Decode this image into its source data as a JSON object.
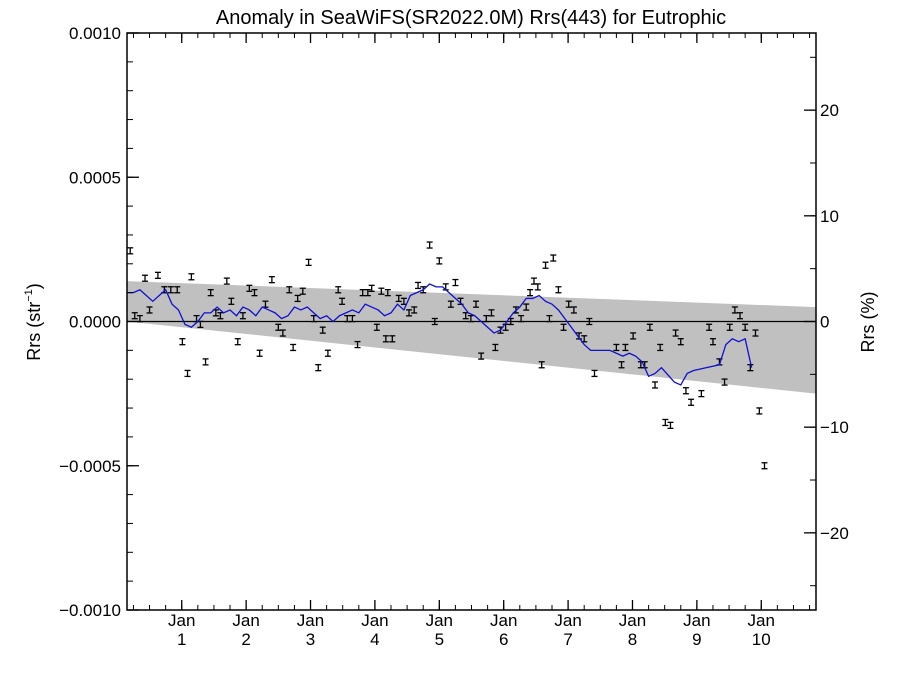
{
  "chart_data": {
    "type": "scatter",
    "title": "Anomaly in SeaWiFS(SR2022.0M) Rrs(443) for Eutrophic",
    "ylabel_left": "Rrs (str",
    "ylabel_left_sup": "−1",
    "ylabel_left_close": ")",
    "ylabel_right": "Rrs (%)",
    "xlim": [
      0,
      10.7
    ],
    "ylim": [
      -0.001,
      0.001
    ],
    "ylim_right": [
      -27.3,
      27.3
    ],
    "left_ticks": [
      {
        "v": 0.001,
        "label": "0.0010"
      },
      {
        "v": 0.0005,
        "label": "0.0005"
      },
      {
        "v": 0.0,
        "label": "0.0000"
      },
      {
        "v": -0.0005,
        "label": "−0.0005"
      },
      {
        "v": -0.001,
        "label": "−0.0010"
      }
    ],
    "right_ticks": [
      {
        "v": 20,
        "label": "20"
      },
      {
        "v": 10,
        "label": "10"
      },
      {
        "v": 0,
        "label": "0"
      },
      {
        "v": -10,
        "label": "−10"
      },
      {
        "v": -20,
        "label": "−20"
      }
    ],
    "x_ticks": [
      {
        "x": 0.85,
        "month": "Jan",
        "year": "1"
      },
      {
        "x": 1.85,
        "month": "Jan",
        "year": "2"
      },
      {
        "x": 2.85,
        "month": "Jan",
        "year": "3"
      },
      {
        "x": 3.85,
        "month": "Jan",
        "year": "4"
      },
      {
        "x": 4.85,
        "month": "Jan",
        "year": "5"
      },
      {
        "x": 5.85,
        "month": "Jan",
        "year": "6"
      },
      {
        "x": 6.85,
        "month": "Jan",
        "year": "7"
      },
      {
        "x": 7.85,
        "month": "Jan",
        "year": "8"
      },
      {
        "x": 8.85,
        "month": "Jan",
        "year": "9"
      },
      {
        "x": 9.85,
        "month": "Jan",
        "year": "10"
      }
    ],
    "envelope": {
      "x": [
        0,
        10.7
      ],
      "upper": [
        0.00014,
        5e-05
      ],
      "lower": [
        0.0,
        -0.00025
      ]
    },
    "points": [
      {
        "x": 0.05,
        "y": 0.000245
      },
      {
        "x": 0.12,
        "y": 2e-05
      },
      {
        "x": 0.2,
        "y": 1e-05
      },
      {
        "x": 0.28,
        "y": 0.00015
      },
      {
        "x": 0.35,
        "y": 4e-05
      },
      {
        "x": 0.48,
        "y": 0.00016
      },
      {
        "x": 0.58,
        "y": 0.00011
      },
      {
        "x": 0.68,
        "y": 0.00011
      },
      {
        "x": 0.78,
        "y": 0.00011
      },
      {
        "x": 0.86,
        "y": -7e-05
      },
      {
        "x": 0.94,
        "y": -0.00018
      },
      {
        "x": 1.0,
        "y": 0.000155
      },
      {
        "x": 1.08,
        "y": 1e-05
      },
      {
        "x": 1.14,
        "y": -1e-05
      },
      {
        "x": 1.22,
        "y": -0.00014
      },
      {
        "x": 1.3,
        "y": 0.0001
      },
      {
        "x": 1.38,
        "y": 3e-05
      },
      {
        "x": 1.45,
        "y": 2e-05
      },
      {
        "x": 1.55,
        "y": 0.00014
      },
      {
        "x": 1.62,
        "y": 7e-05
      },
      {
        "x": 1.72,
        "y": -7e-05
      },
      {
        "x": 1.8,
        "y": 2e-05
      },
      {
        "x": 1.9,
        "y": 0.000115
      },
      {
        "x": 1.98,
        "y": 0.0001
      },
      {
        "x": 2.06,
        "y": -0.00011
      },
      {
        "x": 2.15,
        "y": 6e-05
      },
      {
        "x": 2.25,
        "y": 0.000145
      },
      {
        "x": 2.35,
        "y": -2e-05
      },
      {
        "x": 2.42,
        "y": -4e-05
      },
      {
        "x": 2.52,
        "y": 0.00011
      },
      {
        "x": 2.58,
        "y": -9e-05
      },
      {
        "x": 2.65,
        "y": 8e-05
      },
      {
        "x": 2.73,
        "y": 0.000105
      },
      {
        "x": 2.82,
        "y": 0.000205
      },
      {
        "x": 2.9,
        "y": 1e-05
      },
      {
        "x": 2.97,
        "y": -0.00016
      },
      {
        "x": 3.04,
        "y": -3e-05
      },
      {
        "x": 3.12,
        "y": -0.00011
      },
      {
        "x": 3.28,
        "y": 0.00011
      },
      {
        "x": 3.34,
        "y": 7e-05
      },
      {
        "x": 3.42,
        "y": 1e-05
      },
      {
        "x": 3.5,
        "y": 1e-05
      },
      {
        "x": 3.58,
        "y": -8e-05
      },
      {
        "x": 3.66,
        "y": 0.0001
      },
      {
        "x": 3.74,
        "y": 0.0001
      },
      {
        "x": 3.8,
        "y": 0.000115
      },
      {
        "x": 3.88,
        "y": -2e-05
      },
      {
        "x": 3.95,
        "y": 0.000105
      },
      {
        "x": 4.02,
        "y": -6e-05
      },
      {
        "x": 4.12,
        "y": -6e-05
      },
      {
        "x": 4.05,
        "y": 0.0001
      },
      {
        "x": 4.22,
        "y": 8e-05
      },
      {
        "x": 4.3,
        "y": 7e-05
      },
      {
        "x": 4.38,
        "y": 3e-05
      },
      {
        "x": 4.46,
        "y": 4e-05
      },
      {
        "x": 4.52,
        "y": 0.000125
      },
      {
        "x": 4.6,
        "y": 0.00011
      },
      {
        "x": 4.7,
        "y": 0.000265
      },
      {
        "x": 4.78,
        "y": 0.0
      },
      {
        "x": 4.85,
        "y": 0.00021
      },
      {
        "x": 4.95,
        "y": 0.00012
      },
      {
        "x": 5.03,
        "y": 6e-05
      },
      {
        "x": 5.1,
        "y": 0.000135
      },
      {
        "x": 5.18,
        "y": 7e-05
      },
      {
        "x": 5.26,
        "y": 2e-05
      },
      {
        "x": 5.34,
        "y": 1e-05
      },
      {
        "x": 5.42,
        "y": 6e-05
      },
      {
        "x": 5.5,
        "y": -0.00012
      },
      {
        "x": 5.58,
        "y": 1e-05
      },
      {
        "x": 5.66,
        "y": 3e-05
      },
      {
        "x": 5.72,
        "y": -9e-05
      },
      {
        "x": 5.8,
        "y": -3e-05
      },
      {
        "x": 5.88,
        "y": -2e-05
      },
      {
        "x": 5.96,
        "y": 0.0
      },
      {
        "x": 6.04,
        "y": 4e-05
      },
      {
        "x": 6.12,
        "y": 1e-05
      },
      {
        "x": 6.2,
        "y": 5e-05
      },
      {
        "x": 6.26,
        "y": 0.0001
      },
      {
        "x": 6.32,
        "y": 0.00014
      },
      {
        "x": 6.38,
        "y": 0.00012
      },
      {
        "x": 6.44,
        "y": -0.00015
      },
      {
        "x": 6.5,
        "y": 0.000195
      },
      {
        "x": 6.56,
        "y": 1e-05
      },
      {
        "x": 6.62,
        "y": 0.00022
      },
      {
        "x": 6.7,
        "y": 0.00011
      },
      {
        "x": 6.78,
        "y": -2e-05
      },
      {
        "x": 6.86,
        "y": 6e-05
      },
      {
        "x": 6.94,
        "y": 4e-05
      },
      {
        "x": 7.02,
        "y": -5e-05
      },
      {
        "x": 7.1,
        "y": -6e-05
      },
      {
        "x": 7.18,
        "y": 0.0
      },
      {
        "x": 7.26,
        "y": -0.00018
      },
      {
        "x": 7.6,
        "y": -9e-05
      },
      {
        "x": 7.68,
        "y": -0.00015
      },
      {
        "x": 7.74,
        "y": -9e-05
      },
      {
        "x": 7.86,
        "y": -5e-05
      },
      {
        "x": 7.98,
        "y": -0.00015
      },
      {
        "x": 8.04,
        "y": -0.00015
      },
      {
        "x": 8.12,
        "y": -2e-05
      },
      {
        "x": 8.2,
        "y": -0.00022
      },
      {
        "x": 8.28,
        "y": -9e-05
      },
      {
        "x": 8.36,
        "y": -0.00035
      },
      {
        "x": 8.44,
        "y": -0.00036
      },
      {
        "x": 8.52,
        "y": -4e-05
      },
      {
        "x": 8.6,
        "y": -7e-05
      },
      {
        "x": 8.68,
        "y": -0.00024
      },
      {
        "x": 8.76,
        "y": -0.00028
      },
      {
        "x": 8.92,
        "y": -0.00025
      },
      {
        "x": 9.04,
        "y": -2e-05
      },
      {
        "x": 9.1,
        "y": -7e-05
      },
      {
        "x": 9.2,
        "y": -0.00014
      },
      {
        "x": 9.28,
        "y": -0.00021
      },
      {
        "x": 9.36,
        "y": -2e-05
      },
      {
        "x": 9.44,
        "y": 4e-05
      },
      {
        "x": 9.52,
        "y": 2e-05
      },
      {
        "x": 9.6,
        "y": -2e-05
      },
      {
        "x": 9.68,
        "y": -0.00016
      },
      {
        "x": 9.76,
        "y": -4e-05
      },
      {
        "x": 9.82,
        "y": -0.00031
      },
      {
        "x": 9.9,
        "y": -0.0005
      }
    ],
    "line_series": {
      "x": [
        0,
        0.1,
        0.2,
        0.3,
        0.4,
        0.5,
        0.6,
        0.7,
        0.8,
        0.9,
        1.0,
        1.1,
        1.2,
        1.3,
        1.4,
        1.5,
        1.6,
        1.7,
        1.8,
        1.9,
        2.0,
        2.1,
        2.2,
        2.3,
        2.4,
        2.5,
        2.6,
        2.7,
        2.8,
        2.9,
        3.0,
        3.1,
        3.2,
        3.3,
        3.4,
        3.5,
        3.6,
        3.7,
        3.8,
        3.9,
        4.0,
        4.1,
        4.2,
        4.3,
        4.4,
        4.5,
        4.6,
        4.7,
        4.8,
        4.9,
        5.0,
        5.1,
        5.2,
        5.3,
        5.4,
        5.5,
        5.6,
        5.7,
        5.8,
        5.9,
        6.0,
        6.1,
        6.2,
        6.3,
        6.4,
        6.5,
        6.6,
        6.7,
        6.8,
        6.9,
        7.0,
        7.1,
        7.2,
        7.3,
        7.5,
        7.7,
        7.8,
        7.9,
        8.0,
        8.1,
        8.2,
        8.3,
        8.5,
        8.6,
        8.7,
        8.8,
        9.0,
        9.2,
        9.3,
        9.4,
        9.5,
        9.6,
        9.7
      ],
      "y": [
        0.0001,
        0.0001,
        0.00011,
        9e-05,
        7e-05,
        9e-05,
        0.00011,
        6e-05,
        4e-05,
        -1e-05,
        -2e-05,
        0.0,
        3e-05,
        3e-05,
        5e-05,
        3e-05,
        4e-05,
        2e-05,
        5e-05,
        4e-05,
        2e-05,
        5e-05,
        4e-05,
        3e-05,
        1e-05,
        2e-05,
        5e-05,
        4e-05,
        5e-05,
        3e-05,
        1e-05,
        2e-05,
        0.0,
        2e-05,
        3e-05,
        4e-05,
        3e-05,
        6e-05,
        5e-05,
        4e-05,
        2e-05,
        3e-05,
        6e-05,
        4e-05,
        9e-05,
        0.0001,
        0.00011,
        0.00013,
        0.00012,
        0.00012,
        0.0001,
        8e-05,
        6e-05,
        3e-05,
        2e-05,
        0.0,
        -2e-05,
        -4e-05,
        -3e-05,
        0.0,
        3e-05,
        5e-05,
        8e-05,
        8e-05,
        9e-05,
        7e-05,
        6e-05,
        4e-05,
        1e-05,
        -2e-05,
        -5e-05,
        -8e-05,
        -0.0001,
        -0.0001,
        -0.0001,
        -0.00012,
        -0.00011,
        -0.00012,
        -0.00014,
        -0.00019,
        -0.00018,
        -0.00016,
        -0.00021,
        -0.00022,
        -0.00018,
        -0.00017,
        -0.00016,
        -0.00015,
        -8e-05,
        -6e-05,
        -7e-05,
        -6e-05,
        -0.00016
      ]
    }
  }
}
